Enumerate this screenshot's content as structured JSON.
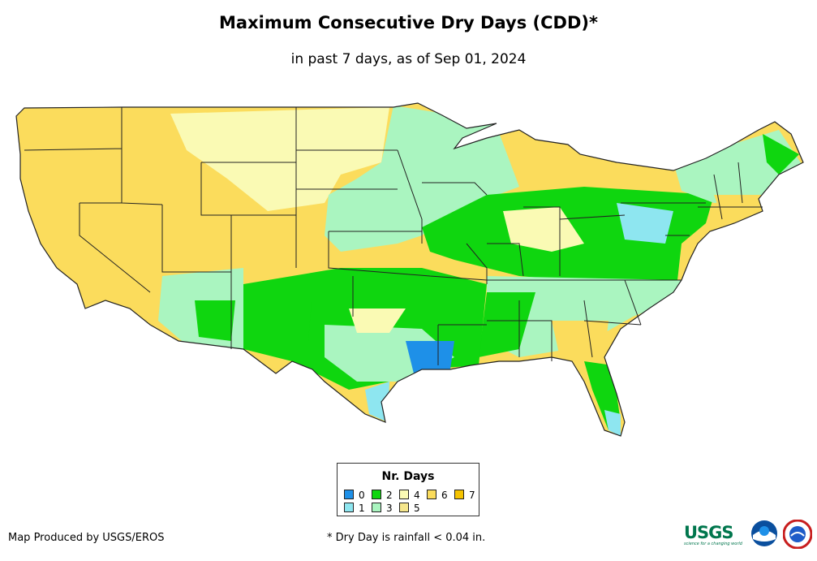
{
  "title": "Maximum Consecutive Dry Days (CDD)*",
  "subtitle": "in past 7 days, as of Sep 01, 2024",
  "legend": {
    "title": "Nr. Days",
    "items": [
      {
        "label": "0",
        "color": "#1e90e8"
      },
      {
        "label": "1",
        "color": "#8ee6f0"
      },
      {
        "label": "2",
        "color": "#0fd60f"
      },
      {
        "label": "3",
        "color": "#aaf5c0"
      },
      {
        "label": "4",
        "color": "#fafab4"
      },
      {
        "label": "5",
        "color": "#f5e68c"
      },
      {
        "label": "6",
        "color": "#fbdc5c"
      },
      {
        "label": "7",
        "color": "#f5c300"
      }
    ]
  },
  "credit": "Map Produced by USGS/EROS",
  "footnote": "* Dry Day is rainfall < 0.04 in.",
  "logos": {
    "usgs": "USGS",
    "usgs_tagline": "science for a changing world"
  },
  "icons": [
    "usgs-logo-icon",
    "noaa-logo-icon",
    "nws-logo-icon"
  ]
}
